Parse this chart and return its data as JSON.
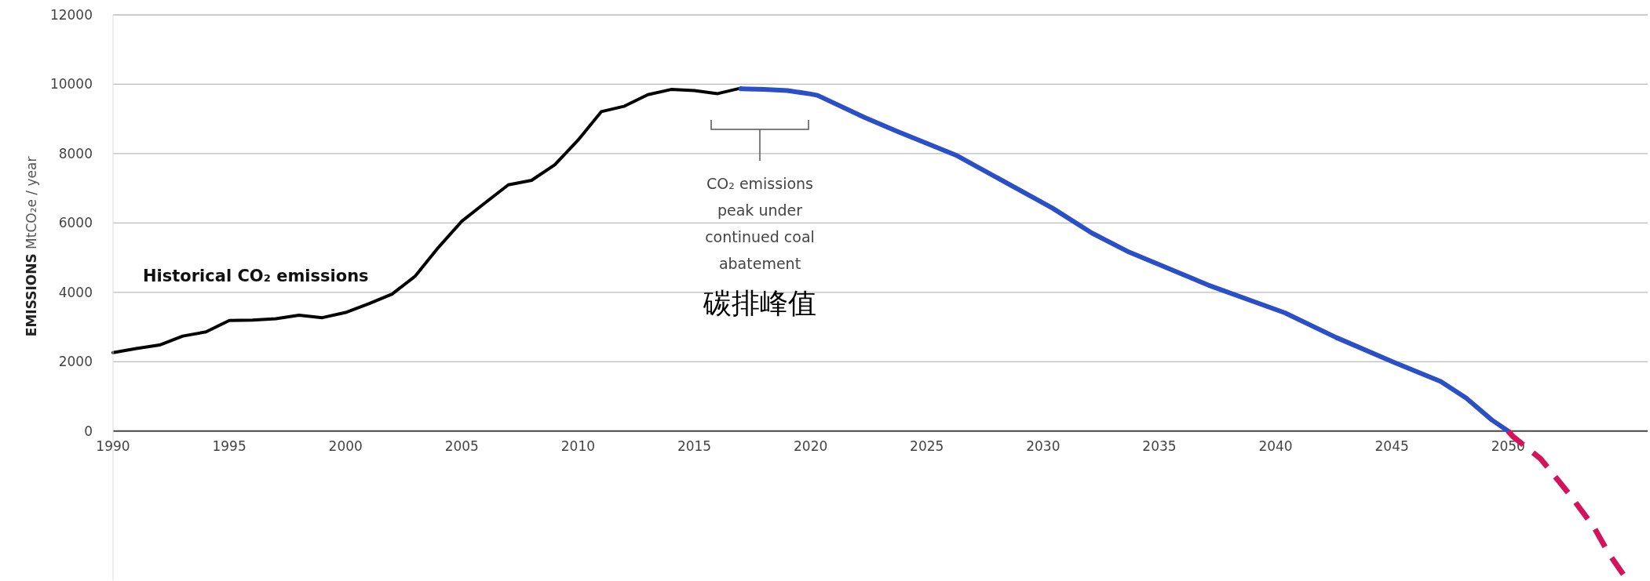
{
  "chart_data": {
    "type": "line",
    "ylabel": "EMISSIONS MtCO₂e / year",
    "grid": "y",
    "line_style": "solid",
    "marker": "none",
    "xlim": [
      1990,
      2056
    ],
    "ylim": [
      -4300,
      12000
    ],
    "xticks": [
      1990,
      1995,
      2000,
      2005,
      2010,
      2015,
      2020,
      2025,
      2030,
      2035,
      2040,
      2045,
      2050
    ],
    "yticks": [
      0,
      2000,
      4000,
      6000,
      8000,
      10000,
      12000
    ],
    "series": [
      {
        "name": "Historical CO₂ emissions",
        "color": "#000000",
        "x": [
          1990,
          1991,
          1992,
          1993,
          1994,
          1995,
          1996,
          1997,
          1998,
          1999,
          2000,
          2001,
          2002,
          2003,
          2004,
          2005,
          2006,
          2007,
          2008,
          2009,
          2010,
          2011,
          2012,
          2013,
          2014,
          2015,
          2016,
          2017
        ],
        "values": [
          2260,
          2380,
          2480,
          2740,
          2860,
          3190,
          3200,
          3240,
          3340,
          3270,
          3420,
          3670,
          3950,
          4470,
          5300,
          6050,
          6580,
          7100,
          7230,
          7680,
          8390,
          9210,
          9370,
          9700,
          9850,
          9820,
          9730,
          9890
        ]
      },
      {
        "color": "#2b4fc7",
        "x": [
          2017,
          2018,
          2019,
          2020,
          2020.3,
          2022.3,
          2023.7,
          2026.3,
          2030.4,
          2032.1,
          2033.7,
          2037.1,
          2040.4,
          2042.6,
          2045.1,
          2047.1,
          2048.2,
          2049.3,
          2050
        ],
        "values": [
          9870,
          9850,
          9820,
          9720,
          9680,
          9050,
          8650,
          7940,
          6430,
          5710,
          5160,
          4210,
          3410,
          2700,
          1980,
          1430,
          950,
          320,
          0
        ]
      },
      {
        "color": "#d4145a",
        "line_style": "dashed",
        "x": [
          2050,
          2050.2,
          2051.4,
          2052.6,
          2053.7,
          2054.3,
          2055
        ],
        "values": [
          0,
          -150,
          -800,
          -1790,
          -2780,
          -3500,
          -4180
        ]
      }
    ],
    "annotations": [
      "CO₂ emissions\npeak under\ncontinued coal\nabatement",
      "碳排峰值"
    ]
  }
}
